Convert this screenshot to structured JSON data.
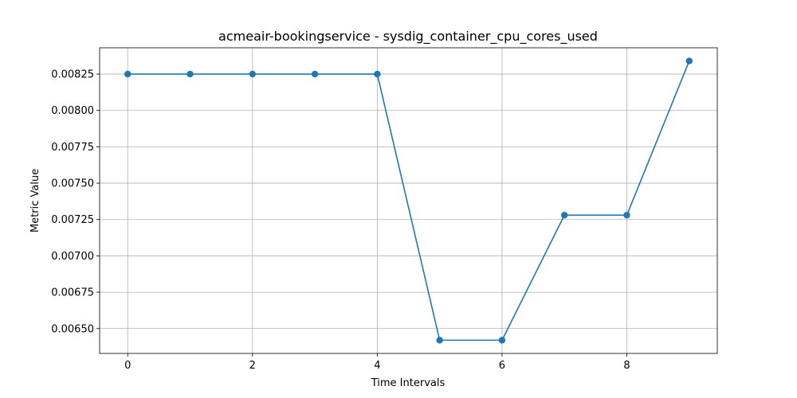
{
  "chart_data": {
    "type": "line",
    "title": "acmeair-bookingservice - sysdig_container_cpu_cores_used",
    "xlabel": "Time Intervals",
    "ylabel": "Metric Value",
    "x": [
      0,
      1,
      2,
      3,
      4,
      5,
      6,
      7,
      8,
      9
    ],
    "series": [
      {
        "name": "",
        "values": [
          0.00825,
          0.00825,
          0.00825,
          0.00825,
          0.00825,
          0.00642,
          0.00642,
          0.00728,
          0.00728,
          0.00834
        ]
      }
    ],
    "xlim": [
      -0.45,
      9.45
    ],
    "ylim": [
      0.006329,
      0.008431
    ],
    "xticks": [
      0,
      2,
      4,
      6,
      8
    ],
    "xtick_labels": [
      "0",
      "2",
      "4",
      "6",
      "8"
    ],
    "yticks": [
      0.0065,
      0.00675,
      0.007,
      0.00725,
      0.0075,
      0.00775,
      0.008,
      0.00825
    ],
    "ytick_labels": [
      "0.00650",
      "0.00675",
      "0.00700",
      "0.00725",
      "0.00750",
      "0.00775",
      "0.00800",
      "0.00825"
    ],
    "grid": true,
    "legend": "none",
    "line_color": "#1f77b4",
    "marker": "circle"
  }
}
